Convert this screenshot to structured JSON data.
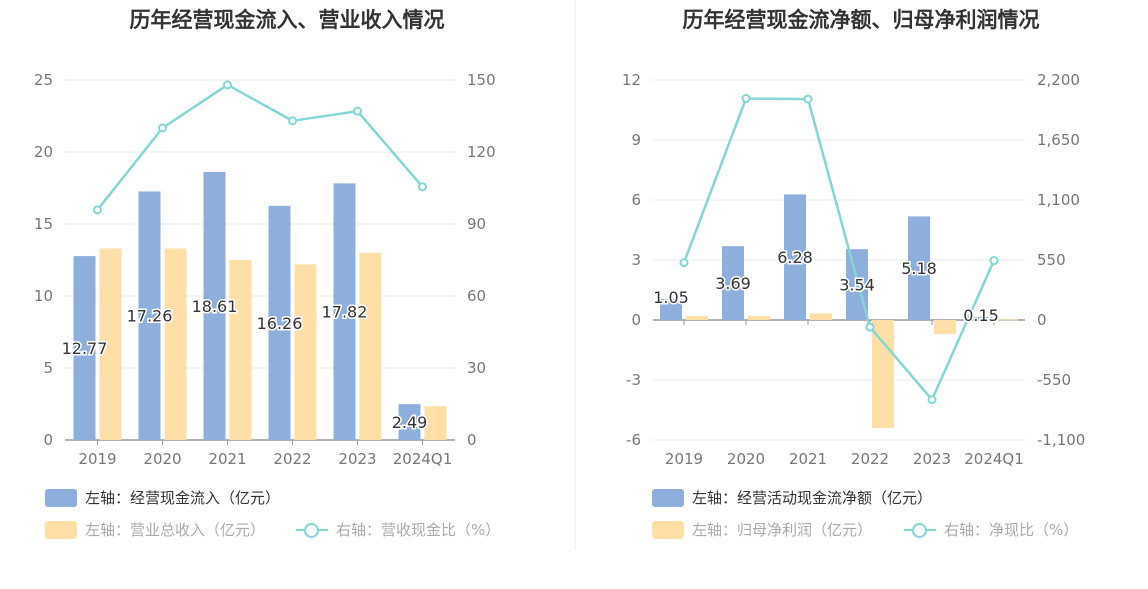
{
  "charts": [
    {
      "title": "历年经营现金流入、营业收入情况",
      "legend": [
        {
          "label": "左轴：经营现金流入（亿元）",
          "color": "#8eaedb",
          "kind": "bar",
          "muted": false
        },
        {
          "label": "左轴：营业总收入（亿元）",
          "color": "#ffdfa6",
          "kind": "bar",
          "muted": true
        },
        {
          "label": "右轴：营收现金比（%）",
          "color": "#85d6d6",
          "kind": "line",
          "muted": true
        }
      ]
    },
    {
      "title": "历年经营现金流净额、归母净利润情况",
      "legend": [
        {
          "label": "左轴：经营活动现金流净额（亿元）",
          "color": "#8eaedb",
          "kind": "bar",
          "muted": false
        },
        {
          "label": "左轴：归母净利润（亿元）",
          "color": "#ffdfa6",
          "kind": "bar",
          "muted": true
        },
        {
          "label": "右轴：净现比（%）",
          "color": "#85d6d6",
          "kind": "line",
          "muted": true
        }
      ]
    }
  ],
  "chart_data": [
    {
      "type": "bar",
      "title": "历年经营现金流入、营业收入情况",
      "categories": [
        "2019",
        "2020",
        "2021",
        "2022",
        "2023",
        "2024Q1"
      ],
      "y_left": {
        "min": 0,
        "max": 25,
        "ticks": [
          "0",
          "5",
          "10",
          "15",
          "20",
          "25"
        ],
        "tick_values": [
          0,
          5,
          10,
          15,
          20,
          25
        ]
      },
      "y_right": {
        "min": 0,
        "max": 150,
        "ticks": [
          "0",
          "30",
          "60",
          "90",
          "120",
          "150"
        ],
        "tick_values": [
          0,
          30,
          60,
          90,
          120,
          150
        ]
      },
      "series": [
        {
          "name": "左轴：经营现金流入（亿元）",
          "axis": "left",
          "kind": "bar",
          "color": "#8eaedb",
          "values": [
            12.77,
            17.26,
            18.61,
            16.26,
            17.82,
            2.49
          ],
          "labels": [
            "12.77",
            "17.26",
            "18.61",
            "16.26",
            "17.82",
            "2.49"
          ]
        },
        {
          "name": "左轴：营业总收入（亿元）",
          "axis": "left",
          "kind": "bar",
          "color": "#ffdfa6",
          "values": [
            13.3,
            13.3,
            12.5,
            12.2,
            13.0,
            2.35
          ]
        },
        {
          "name": "右轴：营收现金比（%）",
          "axis": "right",
          "kind": "line",
          "color": "#85d6d6",
          "values": [
            95.9,
            130.0,
            148.0,
            133.0,
            137.0,
            105.5
          ]
        }
      ],
      "grid": true,
      "legend_position": "bottom-left"
    },
    {
      "type": "bar",
      "title": "历年经营现金流净额、归母净利润情况",
      "categories": [
        "2019",
        "2020",
        "2021",
        "2022",
        "2023",
        "2024Q1"
      ],
      "y_left": {
        "min": -6,
        "max": 12,
        "ticks": [
          "-6",
          "-3",
          "0",
          "3",
          "6",
          "9",
          "12"
        ],
        "tick_values": [
          -6,
          -3,
          0,
          3,
          6,
          9,
          12
        ]
      },
      "y_right": {
        "min": -1100,
        "max": 2200,
        "ticks": [
          "-1,100",
          "-550",
          "0",
          "550",
          "1,100",
          "1,650",
          "2,200"
        ],
        "tick_values": [
          -1100,
          -550,
          0,
          550,
          1100,
          1650,
          2200
        ]
      },
      "series": [
        {
          "name": "左轴：经营活动现金流净额（亿元）",
          "axis": "left",
          "kind": "bar",
          "color": "#8eaedb",
          "values": [
            1.05,
            3.69,
            6.28,
            3.54,
            5.18,
            0.15
          ],
          "labels": [
            "1.05",
            "3.69",
            "6.28",
            "3.54",
            "5.18",
            "0.15"
          ]
        },
        {
          "name": "左轴：归母净利润（亿元）",
          "axis": "left",
          "kind": "bar",
          "color": "#ffdfa6",
          "values": [
            0.2,
            0.2,
            0.33,
            -5.4,
            -0.7,
            0.03
          ]
        },
        {
          "name": "右轴：净现比（%）",
          "axis": "right",
          "kind": "line",
          "color": "#85d6d6",
          "values": [
            525,
            2030,
            2025,
            -65,
            -730,
            545
          ]
        }
      ],
      "grid": true,
      "legend_position": "bottom-left"
    }
  ]
}
